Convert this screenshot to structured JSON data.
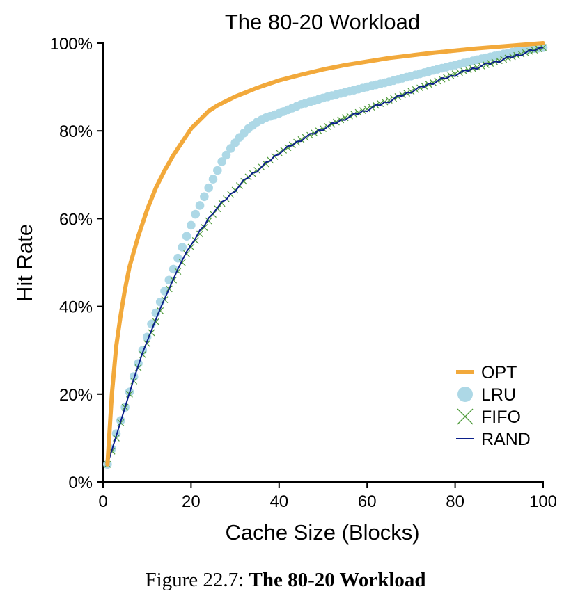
{
  "chart_data": {
    "type": "line",
    "title": "The 80-20 Workload",
    "xlabel": "Cache Size (Blocks)",
    "ylabel": "Hit Rate",
    "xlim": [
      0,
      100
    ],
    "ylim": [
      0,
      100
    ],
    "x_ticks": [
      0,
      20,
      40,
      60,
      80,
      100
    ],
    "x_tick_labels": [
      "0",
      "20",
      "40",
      "60",
      "80",
      "100"
    ],
    "y_ticks": [
      0,
      20,
      40,
      60,
      80,
      100
    ],
    "y_tick_labels": [
      "0%",
      "20%",
      "40%",
      "60%",
      "80%",
      "100%"
    ],
    "grid": false,
    "legend_position": "bottom-right",
    "series": [
      {
        "name": "OPT",
        "style": "thick-line",
        "color": "#f2a93b",
        "x": [
          1,
          2,
          3,
          4,
          5,
          6,
          8,
          10,
          12,
          14,
          16,
          18,
          20,
          22,
          24,
          26,
          28,
          30,
          35,
          40,
          45,
          50,
          55,
          60,
          65,
          70,
          75,
          80,
          85,
          90,
          95,
          100
        ],
        "y": [
          4,
          20,
          31,
          38,
          44,
          49,
          56,
          62,
          67,
          71,
          74.5,
          77.5,
          80.5,
          82.5,
          84.5,
          85.8,
          86.8,
          87.8,
          89.8,
          91.5,
          92.8,
          94,
          95,
          95.8,
          96.6,
          97.2,
          97.8,
          98.3,
          98.8,
          99.2,
          99.6,
          100
        ]
      },
      {
        "name": "LRU",
        "style": "dots",
        "color": "#add8e6",
        "x": [
          1,
          3,
          5,
          7,
          9,
          11,
          13,
          15,
          17,
          19,
          21,
          23,
          25,
          27,
          29,
          31,
          33,
          35,
          37,
          40,
          45,
          50,
          55,
          60,
          65,
          70,
          75,
          80,
          85,
          90,
          95,
          100
        ],
        "y": [
          4,
          11,
          17,
          24,
          30,
          36,
          41,
          46,
          51,
          56,
          61,
          65,
          69,
          73,
          76,
          78.5,
          80.5,
          82,
          83,
          84,
          86,
          87.5,
          88.8,
          90,
          91.2,
          92.5,
          93.8,
          95,
          96.2,
          97.3,
          98.4,
          99
        ]
      },
      {
        "name": "FIFO",
        "style": "x-markers",
        "color": "#4e9a3a",
        "x": [
          1,
          3,
          5,
          7,
          9,
          11,
          13,
          15,
          17,
          19,
          21,
          23,
          25,
          27,
          29,
          31,
          33,
          35,
          37,
          40,
          45,
          50,
          55,
          60,
          65,
          70,
          75,
          80,
          85,
          90,
          95,
          100
        ],
        "y": [
          4,
          10,
          17,
          23,
          29,
          34,
          39,
          44,
          48,
          52,
          55,
          58,
          61,
          63.5,
          65.5,
          67.5,
          69.5,
          71,
          72.5,
          75,
          78,
          80.5,
          83,
          85,
          87,
          89,
          91,
          93,
          94.5,
          96,
          97.5,
          99
        ]
      },
      {
        "name": "RAND",
        "style": "thin-line",
        "color": "#0b1f8a",
        "x": [
          1,
          3,
          5,
          7,
          9,
          11,
          13,
          15,
          17,
          19,
          21,
          23,
          25,
          27,
          29,
          31,
          33,
          35,
          37,
          40,
          45,
          50,
          55,
          60,
          65,
          70,
          75,
          80,
          85,
          90,
          95,
          100
        ],
        "y": [
          4,
          10.5,
          17,
          23.5,
          29.5,
          34.5,
          39.5,
          44,
          48.5,
          52.5,
          55.5,
          58.5,
          61.5,
          63.5,
          65.5,
          67.5,
          69.5,
          71,
          72.5,
          75,
          78,
          80.5,
          82.8,
          84.8,
          86.8,
          89,
          91,
          92.8,
          94.5,
          96,
          97.5,
          99
        ]
      }
    ]
  },
  "caption": {
    "label": "Figure 22.7:",
    "title": "The 80-20 Workload"
  }
}
